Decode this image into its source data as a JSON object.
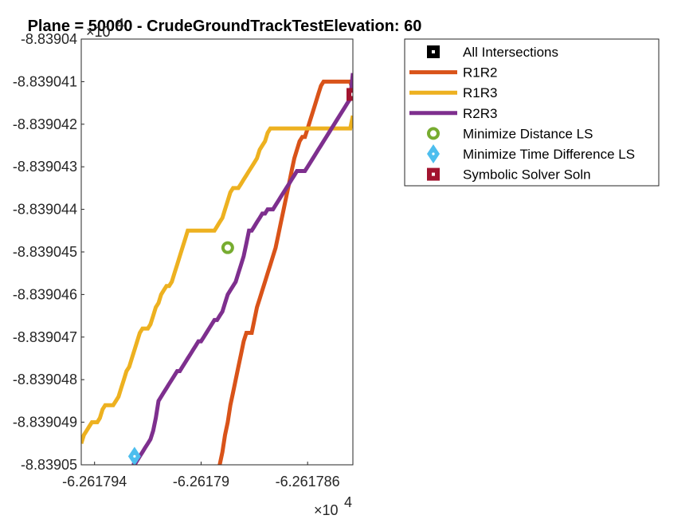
{
  "chart_data": {
    "type": "line",
    "title": "Plane = 50000 - CrudeGroundTrackTestElevation: 60",
    "xlabel": "",
    "ylabel": "",
    "x_exponent_label": "×10",
    "x_exponent_power": "4",
    "y_exponent_label": "×10",
    "y_exponent_power": "4",
    "xlim": [
      -6.2617945,
      -6.2617843
    ],
    "ylim": [
      -8.83905,
      -8.83904
    ],
    "xticks": [
      -6.261794,
      -6.26179,
      -6.261786
    ],
    "xtick_labels": [
      "-6.261794",
      "-6.26179",
      "-6.261786"
    ],
    "yticks": [
      -8.83904,
      -8.839041,
      -8.839042,
      -8.839043,
      -8.839044,
      -8.839045,
      -8.839046,
      -8.839047,
      -8.839048,
      -8.839049,
      -8.83905
    ],
    "ytick_labels": [
      "-8.83904",
      "-8.839041",
      "-8.839042",
      "-8.839043",
      "-8.839044",
      "-8.839045",
      "-8.839046",
      "-8.839047",
      "-8.839048",
      "-8.839049",
      "-8.83905"
    ],
    "legend_position": "top-right outside",
    "series": [
      {
        "name": "R1R2",
        "color": "#D95319",
        "style": "line",
        "x": [
          -6.2617893,
          -6.2617892,
          -6.2617891,
          -6.261789,
          -6.2617889,
          -6.2617888,
          -6.2617887,
          -6.2617886,
          -6.2617885,
          -6.2617884,
          -6.2617883,
          -6.2617882,
          -6.2617881,
          -6.261788,
          -6.2617879,
          -6.2617878,
          -6.2617877,
          -6.2617876,
          -6.2617875,
          -6.2617874,
          -6.2617873,
          -6.2617872,
          -6.2617871,
          -6.261787,
          -6.2617869,
          -6.2617868,
          -6.2617867,
          -6.2617866,
          -6.2617865,
          -6.2617864,
          -6.2617863,
          -6.2617862,
          -6.2617861,
          -6.261786,
          -6.2617859,
          -6.2617858,
          -6.2617857,
          -6.2617856,
          -6.2617855,
          -6.2617854,
          -6.2617853,
          -6.2617852,
          -6.2617851,
          -6.261785,
          -6.2617849,
          -6.2617848,
          -6.2617847,
          -6.2617846,
          -6.2617845,
          -6.2617844,
          -6.2617843
        ],
        "y": [
          -8.83905,
          -8.8390497,
          -8.8390493,
          -8.839049,
          -8.8390486,
          -8.8390483,
          -8.839048,
          -8.8390477,
          -8.8390474,
          -8.8390471,
          -8.8390469,
          -8.8390469,
          -8.8390469,
          -8.8390466,
          -8.8390463,
          -8.8390461,
          -8.8390459,
          -8.8390457,
          -8.8390455,
          -8.8390453,
          -8.8390451,
          -8.8390449,
          -8.8390446,
          -8.8390443,
          -8.839044,
          -8.8390437,
          -8.8390434,
          -8.8390431,
          -8.8390428,
          -8.8390426,
          -8.8390424,
          -8.8390423,
          -8.8390423,
          -8.8390421,
          -8.8390419,
          -8.8390417,
          -8.8390415,
          -8.8390413,
          -8.8390411,
          -8.839041,
          -8.839041,
          -8.839041,
          -8.839041,
          -8.839041,
          -8.839041,
          -8.839041,
          -8.839041,
          -8.839041,
          -8.839041,
          -8.839041,
          -8.8390412
        ]
      },
      {
        "name": "R1R3",
        "color": "#EDB120",
        "style": "line",
        "x": [
          -6.2617945,
          -6.2617944,
          -6.2617943,
          -6.2617942,
          -6.2617941,
          -6.261794,
          -6.2617939,
          -6.2617938,
          -6.2617937,
          -6.2617936,
          -6.2617935,
          -6.2617934,
          -6.2617933,
          -6.2617932,
          -6.2617931,
          -6.261793,
          -6.2617929,
          -6.2617928,
          -6.2617927,
          -6.2617926,
          -6.2617925,
          -6.2617924,
          -6.2617923,
          -6.2617922,
          -6.2617921,
          -6.261792,
          -6.2617919,
          -6.2617918,
          -6.2617917,
          -6.2617916,
          -6.2617915,
          -6.2617914,
          -6.2617913,
          -6.2617912,
          -6.2617911,
          -6.261791,
          -6.2617909,
          -6.2617908,
          -6.2617907,
          -6.2617906,
          -6.2617905,
          -6.2617904,
          -6.2617903,
          -6.2617902,
          -6.2617901,
          -6.26179,
          -6.2617899,
          -6.2617898,
          -6.2617897,
          -6.2617896,
          -6.2617895,
          -6.2617894,
          -6.2617893,
          -6.2617892,
          -6.2617891,
          -6.261789,
          -6.2617889,
          -6.2617888,
          -6.2617887,
          -6.2617886,
          -6.2617885,
          -6.2617884,
          -6.2617883,
          -6.2617882,
          -6.2617881,
          -6.261788,
          -6.2617879,
          -6.2617878,
          -6.2617877,
          -6.2617876,
          -6.2617875,
          -6.2617874,
          -6.2617873,
          -6.2617872,
          -6.2617871,
          -6.261787,
          -6.2617869,
          -6.2617868,
          -6.2617867,
          -6.2617866,
          -6.2617865,
          -6.2617864,
          -6.2617863,
          -6.2617862,
          -6.2617861,
          -6.261786,
          -6.2617859,
          -6.2617858,
          -6.2617857,
          -6.2617856,
          -6.2617855,
          -6.2617854,
          -6.2617853,
          -6.2617852,
          -6.2617851,
          -6.261785,
          -6.2617849,
          -6.2617848,
          -6.2617847,
          -6.2617846,
          -6.2617845,
          -6.2617844,
          -6.2617843
        ],
        "y": [
          -8.8390495,
          -8.8390493,
          -8.8390492,
          -8.8390491,
          -8.839049,
          -8.839049,
          -8.839049,
          -8.8390489,
          -8.8390487,
          -8.8390486,
          -8.8390486,
          -8.8390486,
          -8.8390486,
          -8.8390485,
          -8.8390484,
          -8.8390482,
          -8.839048,
          -8.8390478,
          -8.8390477,
          -8.8390475,
          -8.8390473,
          -8.8390471,
          -8.8390469,
          -8.8390468,
          -8.8390468,
          -8.8390468,
          -8.8390467,
          -8.8390465,
          -8.8390463,
          -8.8390462,
          -8.839046,
          -8.8390459,
          -8.8390458,
          -8.8390458,
          -8.8390457,
          -8.8390455,
          -8.8390453,
          -8.8390451,
          -8.8390449,
          -8.8390447,
          -8.8390445,
          -8.8390445,
          -8.8390445,
          -8.8390445,
          -8.8390445,
          -8.8390445,
          -8.8390445,
          -8.8390445,
          -8.8390445,
          -8.8390445,
          -8.8390445,
          -8.8390444,
          -8.8390443,
          -8.8390442,
          -8.839044,
          -8.8390438,
          -8.8390436,
          -8.8390435,
          -8.8390435,
          -8.8390435,
          -8.8390434,
          -8.8390433,
          -8.8390432,
          -8.8390431,
          -8.839043,
          -8.8390429,
          -8.8390428,
          -8.8390426,
          -8.8390425,
          -8.8390424,
          -8.8390422,
          -8.8390421,
          -8.8390421,
          -8.8390421,
          -8.8390421,
          -8.8390421,
          -8.8390421,
          -8.8390421,
          -8.8390421,
          -8.8390421,
          -8.8390421,
          -8.8390421,
          -8.8390421,
          -8.8390421,
          -8.8390421,
          -8.8390421,
          -8.8390421,
          -8.8390421,
          -8.8390421,
          -8.8390421,
          -8.8390421,
          -8.8390421,
          -8.8390421,
          -8.8390421,
          -8.8390421,
          -8.8390421,
          -8.8390421,
          -8.8390421,
          -8.8390421,
          -8.8390421,
          -8.8390421,
          -8.8390421,
          -8.8390418
        ]
      },
      {
        "name": "R2R3",
        "color": "#7E2F8E",
        "style": "line",
        "x": [
          -6.2617926,
          -6.2617925,
          -6.2617924,
          -6.2617923,
          -6.2617922,
          -6.2617921,
          -6.261792,
          -6.2617919,
          -6.2617918,
          -6.2617917,
          -6.2617916,
          -6.2617915,
          -6.2617914,
          -6.2617913,
          -6.2617912,
          -6.2617911,
          -6.261791,
          -6.2617909,
          -6.2617908,
          -6.2617907,
          -6.2617906,
          -6.2617905,
          -6.2617904,
          -6.2617903,
          -6.2617902,
          -6.2617901,
          -6.26179,
          -6.2617899,
          -6.2617898,
          -6.2617897,
          -6.2617896,
          -6.2617895,
          -6.2617894,
          -6.2617893,
          -6.2617892,
          -6.2617891,
          -6.261789,
          -6.2617889,
          -6.2617888,
          -6.2617887,
          -6.2617886,
          -6.2617885,
          -6.2617884,
          -6.2617883,
          -6.2617882,
          -6.2617881,
          -6.261788,
          -6.2617879,
          -6.2617878,
          -6.2617877,
          -6.2617876,
          -6.2617875,
          -6.2617874,
          -6.2617873,
          -6.2617872,
          -6.2617871,
          -6.261787,
          -6.2617869,
          -6.2617868,
          -6.2617867,
          -6.2617866,
          -6.2617865,
          -6.2617864,
          -6.2617863,
          -6.2617862,
          -6.2617861,
          -6.261786,
          -6.2617859,
          -6.2617858,
          -6.2617857,
          -6.2617856,
          -6.2617855,
          -6.2617854,
          -6.2617853,
          -6.2617852,
          -6.2617851,
          -6.261785,
          -6.2617849,
          -6.2617848,
          -6.2617847,
          -6.2617846,
          -6.2617845,
          -6.2617844,
          -6.2617843
        ],
        "y": [
          -8.83905,
          -8.83905,
          -8.8390499,
          -8.8390498,
          -8.8390497,
          -8.8390496,
          -8.8390495,
          -8.8390494,
          -8.8390492,
          -8.8390489,
          -8.8390485,
          -8.8390484,
          -8.8390483,
          -8.8390482,
          -8.8390481,
          -8.839048,
          -8.8390479,
          -8.8390478,
          -8.8390478,
          -8.8390477,
          -8.8390476,
          -8.8390475,
          -8.8390474,
          -8.8390473,
          -8.8390472,
          -8.8390471,
          -8.8390471,
          -8.839047,
          -8.8390469,
          -8.8390468,
          -8.8390467,
          -8.8390466,
          -8.8390466,
          -8.8390465,
          -8.8390464,
          -8.8390462,
          -8.839046,
          -8.8390459,
          -8.8390458,
          -8.8390457,
          -8.8390455,
          -8.8390453,
          -8.8390451,
          -8.8390448,
          -8.8390445,
          -8.8390445,
          -8.8390444,
          -8.8390443,
          -8.8390442,
          -8.8390441,
          -8.8390441,
          -8.839044,
          -8.839044,
          -8.839044,
          -8.8390439,
          -8.8390438,
          -8.8390437,
          -8.8390436,
          -8.8390435,
          -8.8390434,
          -8.8390433,
          -8.8390432,
          -8.8390431,
          -8.8390431,
          -8.8390431,
          -8.8390431,
          -8.839043,
          -8.8390429,
          -8.8390428,
          -8.8390427,
          -8.8390426,
          -8.8390425,
          -8.8390424,
          -8.8390423,
          -8.8390422,
          -8.8390421,
          -8.839042,
          -8.8390419,
          -8.8390418,
          -8.8390417,
          -8.8390416,
          -8.8390415,
          -8.8390414,
          -8.8390408
        ]
      },
      {
        "name": "All Intersections",
        "color": "#000000",
        "style": "square-marker",
        "x": [],
        "y": []
      },
      {
        "name": "Minimize Distance LS",
        "color": "#77AC30",
        "style": "circle-marker",
        "x": [
          -6.261789
        ],
        "y": [
          -8.8390449
        ]
      },
      {
        "name": "Minimize Time Difference LS",
        "color": "#4DBEEE",
        "style": "diamond-marker",
        "x": [
          -6.2617925
        ],
        "y": [
          -8.8390498
        ]
      },
      {
        "name": "Symbolic Solver Soln",
        "color": "#A2142F",
        "style": "square-marker",
        "x": [
          -6.2617843
        ],
        "y": [
          -8.8390413
        ]
      }
    ],
    "legend_order": [
      "All Intersections",
      "R1R2",
      "R1R3",
      "R2R3",
      "Minimize Distance LS",
      "Minimize Time Difference LS",
      "Symbolic Solver Soln"
    ],
    "grid": false
  }
}
